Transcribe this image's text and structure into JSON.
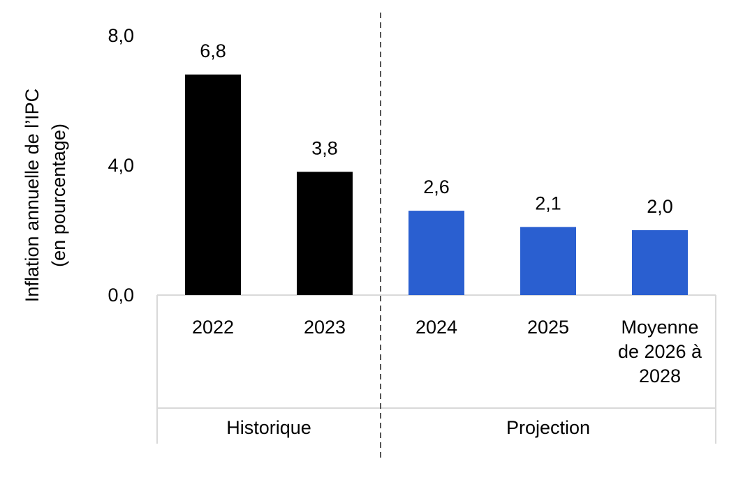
{
  "chart_data": {
    "type": "bar",
    "ylabel_line1": "Inflation annuelle de l’IPC",
    "ylabel_line2": "(en pourcentage)",
    "ylim": [
      0,
      8
    ],
    "yticks": [
      {
        "value": 0,
        "label": "0,0"
      },
      {
        "value": 4,
        "label": "4,0"
      },
      {
        "value": 8,
        "label": "8,0"
      }
    ],
    "categories": [
      {
        "lines": [
          "2022"
        ],
        "value": 6.8,
        "value_label": "6,8",
        "group": "historique"
      },
      {
        "lines": [
          "2023"
        ],
        "value": 3.8,
        "value_label": "3,8",
        "group": "historique"
      },
      {
        "lines": [
          "2024"
        ],
        "value": 2.6,
        "value_label": "2,6",
        "group": "projection"
      },
      {
        "lines": [
          "2025"
        ],
        "value": 2.1,
        "value_label": "2,1",
        "group": "projection"
      },
      {
        "lines": [
          "Moyenne",
          "de 2026 à",
          "2028"
        ],
        "value": 2.0,
        "value_label": "2,0",
        "group": "projection"
      }
    ],
    "groups": [
      {
        "key": "historique",
        "label": "Historique",
        "color": "#000000"
      },
      {
        "key": "projection",
        "label": "Projection",
        "color": "#2A5FD0"
      }
    ],
    "divider": "dashed line between Historique and Projection",
    "grid": false,
    "legend": "none"
  }
}
